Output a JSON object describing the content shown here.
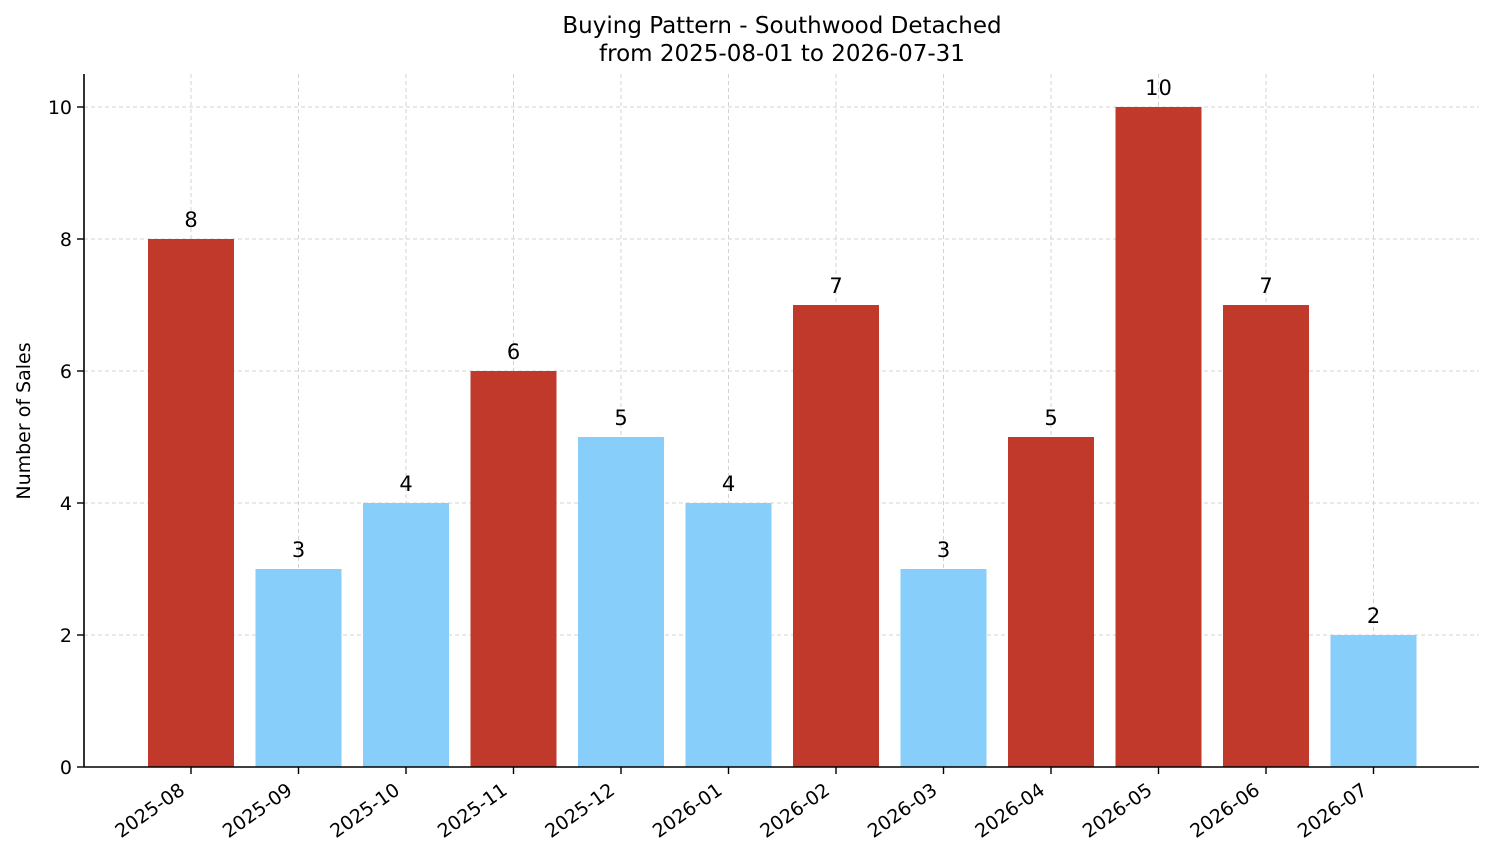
{
  "chart_data": {
    "type": "bar",
    "title": "Buying Pattern - Southwood Detached",
    "subtitle": "from 2025-08-01 to 2026-07-31",
    "xlabel": "",
    "ylabel": "Number of Sales",
    "ylim": [
      0,
      10.5
    ],
    "yticks": [
      "0",
      "2",
      "4",
      "6",
      "8",
      "10"
    ],
    "categories": [
      "2025-08",
      "2025-09",
      "2025-10",
      "2025-11",
      "2025-12",
      "2026-01",
      "2026-02",
      "2026-03",
      "2026-04",
      "2026-05",
      "2026-06",
      "2026-07"
    ],
    "values": [
      8,
      3,
      4,
      6,
      5,
      4,
      7,
      3,
      5,
      10,
      7,
      2
    ],
    "bar_colors": [
      "#c0392b",
      "#87cefa",
      "#87cefa",
      "#c0392b",
      "#87cefa",
      "#87cefa",
      "#c0392b",
      "#87cefa",
      "#c0392b",
      "#c0392b",
      "#c0392b",
      "#87cefa"
    ],
    "grid": true,
    "data_labels": true
  }
}
